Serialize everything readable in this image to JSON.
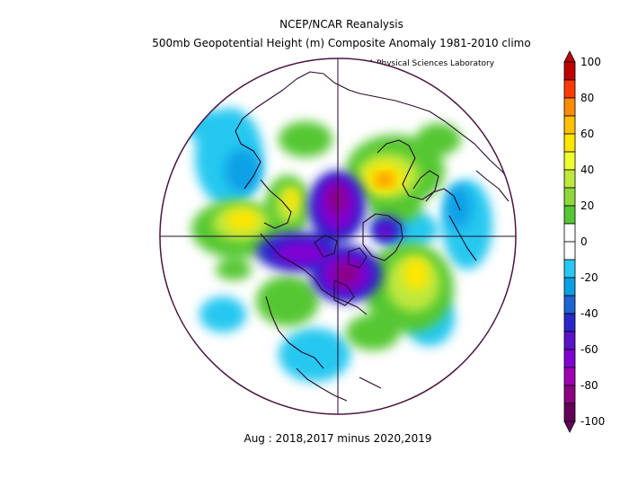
{
  "header": {
    "line1": "NCEP/NCAR Reanalysis",
    "line2": "500mb Geopotential Height (m) Composite Anomaly 1981-2010 climo",
    "credit": "NOAA Physical Sciences Laboratory"
  },
  "caption": "Aug : 2018,2017 minus 2020,2019",
  "colors": {
    "outline": "#4a1540",
    "coast": "#2a0a30"
  },
  "colorbar": {
    "levels": [
      {
        "color": "#c00000",
        "label": "100"
      },
      {
        "color": "#ff3a00",
        "label": ""
      },
      {
        "color": "#ff8c00",
        "label": "80"
      },
      {
        "color": "#ffc000",
        "label": ""
      },
      {
        "color": "#ffe600",
        "label": "60"
      },
      {
        "color": "#f0ff30",
        "label": ""
      },
      {
        "color": "#bfe83c",
        "label": "40"
      },
      {
        "color": "#8ed83c",
        "label": ""
      },
      {
        "color": "#55c733",
        "label": "20"
      },
      {
        "color": "#ffffff",
        "label": ""
      },
      {
        "color": "#ffffff",
        "label": "0"
      },
      {
        "color": "#28c8f0",
        "label": ""
      },
      {
        "color": "#0aa0e6",
        "label": "-20"
      },
      {
        "color": "#1e64d2",
        "label": ""
      },
      {
        "color": "#2828c8",
        "label": "-40"
      },
      {
        "color": "#5a14c8",
        "label": ""
      },
      {
        "color": "#8200d2",
        "label": "-60"
      },
      {
        "color": "#a000b4",
        "label": ""
      },
      {
        "color": "#8c0082",
        "label": "-80"
      },
      {
        "color": "#64005a",
        "label": ""
      }
    ],
    "bottom_label": "-100"
  }
}
